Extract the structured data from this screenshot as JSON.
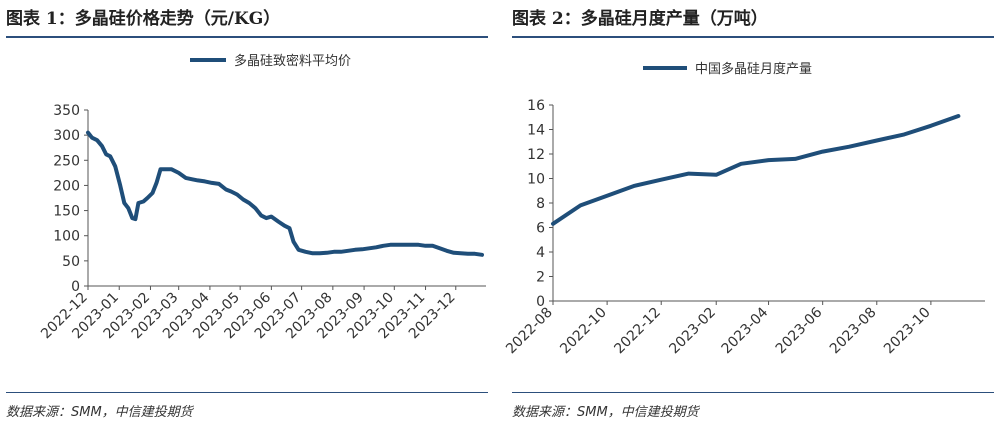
{
  "left_panel": {
    "title": "图表 1：多晶硅价格走势（元/KG）",
    "source": "数据来源：SMM，中信建投期货"
  },
  "right_panel": {
    "title": "图表 2：多晶硅月度产量（万吨）",
    "source": "数据来源：SMM，中信建投期货"
  },
  "colors": {
    "series": "#1f4e79",
    "rule": "#2c4f7c"
  },
  "chart_data": [
    {
      "type": "line",
      "title": "",
      "legend": {
        "position": "top",
        "entries": [
          "多晶硅致密料平均价"
        ]
      },
      "ylim": [
        0,
        350
      ],
      "yticks": [
        0,
        50,
        100,
        150,
        200,
        250,
        300,
        350
      ],
      "xlim": [
        "2022-12-01",
        "2023-12-31"
      ],
      "xtick_labels": [
        "2022-12",
        "2023-01",
        "2023-02",
        "2023-03",
        "2023-04",
        "2023-05",
        "2023-06",
        "2023-07",
        "2023-08",
        "2023-09",
        "2023-10",
        "2023-11",
        "2023-12"
      ],
      "grid": false,
      "series": [
        {
          "name": "多晶硅致密料平均价",
          "x": [
            "2022-12-01",
            "2022-12-05",
            "2022-12-10",
            "2022-12-15",
            "2022-12-19",
            "2022-12-23",
            "2022-12-28",
            "2023-01-02",
            "2023-01-06",
            "2023-01-10",
            "2023-01-14",
            "2023-01-17",
            "2023-01-20",
            "2023-01-25",
            "2023-01-29",
            "2023-02-03",
            "2023-02-07",
            "2023-02-11",
            "2023-02-15",
            "2023-02-18",
            "2023-02-22",
            "2023-03-01",
            "2023-03-08",
            "2023-03-15",
            "2023-03-20",
            "2023-03-27",
            "2023-04-03",
            "2023-04-10",
            "2023-04-17",
            "2023-04-22",
            "2023-04-28",
            "2023-05-04",
            "2023-05-10",
            "2023-05-16",
            "2023-05-22",
            "2023-05-27",
            "2023-06-01",
            "2023-06-08",
            "2023-06-14",
            "2023-06-19",
            "2023-06-23",
            "2023-06-28",
            "2023-07-05",
            "2023-07-12",
            "2023-07-19",
            "2023-07-26",
            "2023-08-02",
            "2023-08-09",
            "2023-08-16",
            "2023-08-23",
            "2023-08-30",
            "2023-09-06",
            "2023-09-13",
            "2023-09-20",
            "2023-09-27",
            "2023-10-04",
            "2023-10-11",
            "2023-10-18",
            "2023-10-25",
            "2023-11-01",
            "2023-11-08",
            "2023-11-15",
            "2023-11-22",
            "2023-11-29",
            "2023-12-06",
            "2023-12-13",
            "2023-12-20",
            "2023-12-27"
          ],
          "y": [
            305,
            295,
            290,
            278,
            262,
            258,
            238,
            200,
            165,
            155,
            135,
            133,
            165,
            168,
            175,
            185,
            205,
            232,
            232,
            232,
            232,
            225,
            215,
            212,
            210,
            208,
            205,
            203,
            192,
            188,
            182,
            172,
            165,
            155,
            140,
            135,
            138,
            128,
            120,
            115,
            88,
            72,
            68,
            65,
            65,
            66,
            68,
            68,
            70,
            72,
            73,
            75,
            77,
            80,
            82,
            82,
            82,
            82,
            82,
            80,
            80,
            75,
            70,
            66,
            65,
            64,
            64,
            62
          ]
        }
      ]
    },
    {
      "type": "line",
      "title": "",
      "legend": {
        "position": "top",
        "entries": [
          "中国多晶硅月度产量"
        ]
      },
      "ylim": [
        0,
        16
      ],
      "yticks": [
        0,
        2,
        4,
        6,
        8,
        10,
        12,
        14,
        16
      ],
      "xlim": [
        "2022-08",
        "2023-12"
      ],
      "xtick_labels": [
        "2022-08",
        "2022-10",
        "2022-12",
        "2023-02",
        "2023-04",
        "2023-06",
        "2023-08",
        "2023-10"
      ],
      "grid": false,
      "series": [
        {
          "name": "中国多晶硅月度产量",
          "x": [
            "2022-08",
            "2022-09",
            "2022-10",
            "2022-11",
            "2022-12",
            "2023-01",
            "2023-02",
            "2023-03",
            "2023-04",
            "2023-05",
            "2023-06",
            "2023-07",
            "2023-08",
            "2023-09",
            "2023-10",
            "2023-11"
          ],
          "y": [
            6.3,
            7.8,
            8.6,
            9.4,
            9.9,
            10.4,
            10.3,
            11.2,
            11.5,
            11.6,
            12.2,
            12.6,
            13.1,
            13.6,
            14.3,
            15.1
          ]
        }
      ]
    }
  ]
}
